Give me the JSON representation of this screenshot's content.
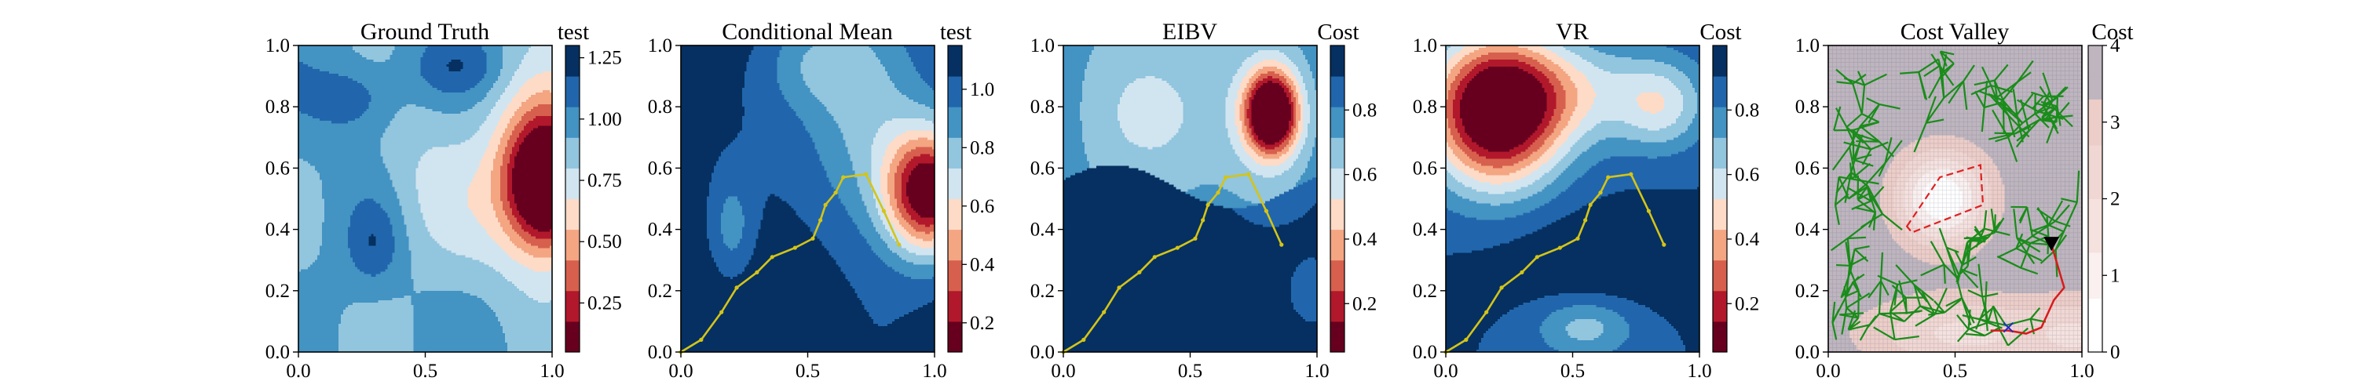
{
  "colors": {
    "rdbu": [
      "#67001f",
      "#b2182b",
      "#d6604d",
      "#f4a582",
      "#fddbc7",
      "#f7f7f7",
      "#d1e5f0",
      "#92c5de",
      "#4393c3",
      "#2166ac",
      "#053061"
    ],
    "path": "#d4c418",
    "tree": "#1a8c1a",
    "route": "#d81b1b",
    "obstacle": "#e02020",
    "target": "#1f2bc9",
    "agent": "#000000",
    "valley_bg": "#8f9db5"
  },
  "chart_data": [
    {
      "type": "heatmap",
      "title": "Ground Truth",
      "colorbar_label": "test",
      "x_ticks": [
        "0.0",
        "0.5",
        "1.0"
      ],
      "y_ticks": [
        "0.0",
        "0.2",
        "0.4",
        "0.6",
        "0.8",
        "1.0"
      ],
      "xlim": [
        0,
        1
      ],
      "ylim": [
        0,
        1
      ],
      "colorbar_ticks": [
        "0.25",
        "0.50",
        "0.75",
        "1.00",
        "1.25"
      ],
      "colorbar_range": [
        0.05,
        1.3
      ],
      "levels": 10
    },
    {
      "type": "heatmap",
      "title": "Conditional Mean",
      "colorbar_label": "test",
      "x_ticks": [
        "0.0",
        "0.5",
        "1.0"
      ],
      "y_ticks": [
        "0.0",
        "0.2",
        "0.4",
        "0.6",
        "0.8",
        "1.0"
      ],
      "xlim": [
        0,
        1
      ],
      "ylim": [
        0,
        1
      ],
      "colorbar_ticks": [
        "0.2",
        "0.4",
        "0.6",
        "0.8",
        "1.0"
      ],
      "colorbar_range": [
        0.1,
        1.15
      ],
      "levels": 10,
      "path": [
        [
          0.0,
          0.0
        ],
        [
          0.08,
          0.04
        ],
        [
          0.16,
          0.13
        ],
        [
          0.22,
          0.21
        ],
        [
          0.3,
          0.26
        ],
        [
          0.36,
          0.31
        ],
        [
          0.45,
          0.34
        ],
        [
          0.52,
          0.37
        ],
        [
          0.55,
          0.43
        ],
        [
          0.57,
          0.48
        ],
        [
          0.61,
          0.52
        ],
        [
          0.64,
          0.57
        ],
        [
          0.73,
          0.58
        ],
        [
          0.8,
          0.46
        ],
        [
          0.86,
          0.35
        ]
      ]
    },
    {
      "type": "heatmap",
      "title": "EIBV",
      "colorbar_label": "Cost",
      "x_ticks": [
        "0.0",
        "0.5",
        "1.0"
      ],
      "y_ticks": [
        "0.0",
        "0.2",
        "0.4",
        "0.6",
        "0.8",
        "1.0"
      ],
      "xlim": [
        0,
        1
      ],
      "ylim": [
        0,
        1
      ],
      "colorbar_ticks": [
        "0.2",
        "0.4",
        "0.6",
        "0.8"
      ],
      "colorbar_range": [
        0.05,
        1.0
      ],
      "levels": 10,
      "path": [
        [
          0.0,
          0.0
        ],
        [
          0.08,
          0.04
        ],
        [
          0.16,
          0.13
        ],
        [
          0.22,
          0.21
        ],
        [
          0.3,
          0.26
        ],
        [
          0.36,
          0.31
        ],
        [
          0.45,
          0.34
        ],
        [
          0.52,
          0.37
        ],
        [
          0.55,
          0.43
        ],
        [
          0.57,
          0.48
        ],
        [
          0.61,
          0.52
        ],
        [
          0.64,
          0.57
        ],
        [
          0.73,
          0.58
        ],
        [
          0.8,
          0.46
        ],
        [
          0.86,
          0.35
        ]
      ]
    },
    {
      "type": "heatmap",
      "title": "VR",
      "colorbar_label": "Cost",
      "x_ticks": [
        "0.0",
        "0.5",
        "1.0"
      ],
      "y_ticks": [
        "0.0",
        "0.2",
        "0.4",
        "0.6",
        "0.8",
        "1.0"
      ],
      "xlim": [
        0,
        1
      ],
      "ylim": [
        0,
        1
      ],
      "colorbar_ticks": [
        "0.2",
        "0.4",
        "0.6",
        "0.8"
      ],
      "colorbar_range": [
        0.05,
        1.0
      ],
      "levels": 10,
      "path": [
        [
          0.0,
          0.0
        ],
        [
          0.08,
          0.04
        ],
        [
          0.16,
          0.13
        ],
        [
          0.22,
          0.21
        ],
        [
          0.3,
          0.26
        ],
        [
          0.36,
          0.31
        ],
        [
          0.45,
          0.34
        ],
        [
          0.52,
          0.37
        ],
        [
          0.55,
          0.43
        ],
        [
          0.57,
          0.48
        ],
        [
          0.61,
          0.52
        ],
        [
          0.64,
          0.57
        ],
        [
          0.73,
          0.58
        ],
        [
          0.8,
          0.46
        ],
        [
          0.86,
          0.35
        ]
      ]
    },
    {
      "type": "heatmap",
      "title": "Cost Valley",
      "colorbar_label": "Cost",
      "x_ticks": [
        "0.0",
        "0.5",
        "1.0"
      ],
      "y_ticks": [
        "0.0",
        "0.2",
        "0.4",
        "0.6",
        "0.8",
        "1.0"
      ],
      "xlim": [
        0,
        1
      ],
      "ylim": [
        0,
        1
      ],
      "colorbar_ticks": [
        "0",
        "1",
        "2",
        "3",
        "4"
      ],
      "colorbar_range": [
        0,
        4
      ],
      "obstacle_polygon": [
        [
          0.31,
          0.41
        ],
        [
          0.44,
          0.57
        ],
        [
          0.6,
          0.61
        ],
        [
          0.61,
          0.48
        ],
        [
          0.33,
          0.39
        ]
      ],
      "agent": [
        0.88,
        0.35
      ],
      "target": [
        0.71,
        0.08
      ],
      "route": [
        [
          0.88,
          0.35
        ],
        [
          0.93,
          0.21
        ],
        [
          0.89,
          0.17
        ],
        [
          0.84,
          0.08
        ],
        [
          0.78,
          0.06
        ],
        [
          0.71,
          0.07
        ],
        [
          0.64,
          0.07
        ]
      ]
    }
  ]
}
